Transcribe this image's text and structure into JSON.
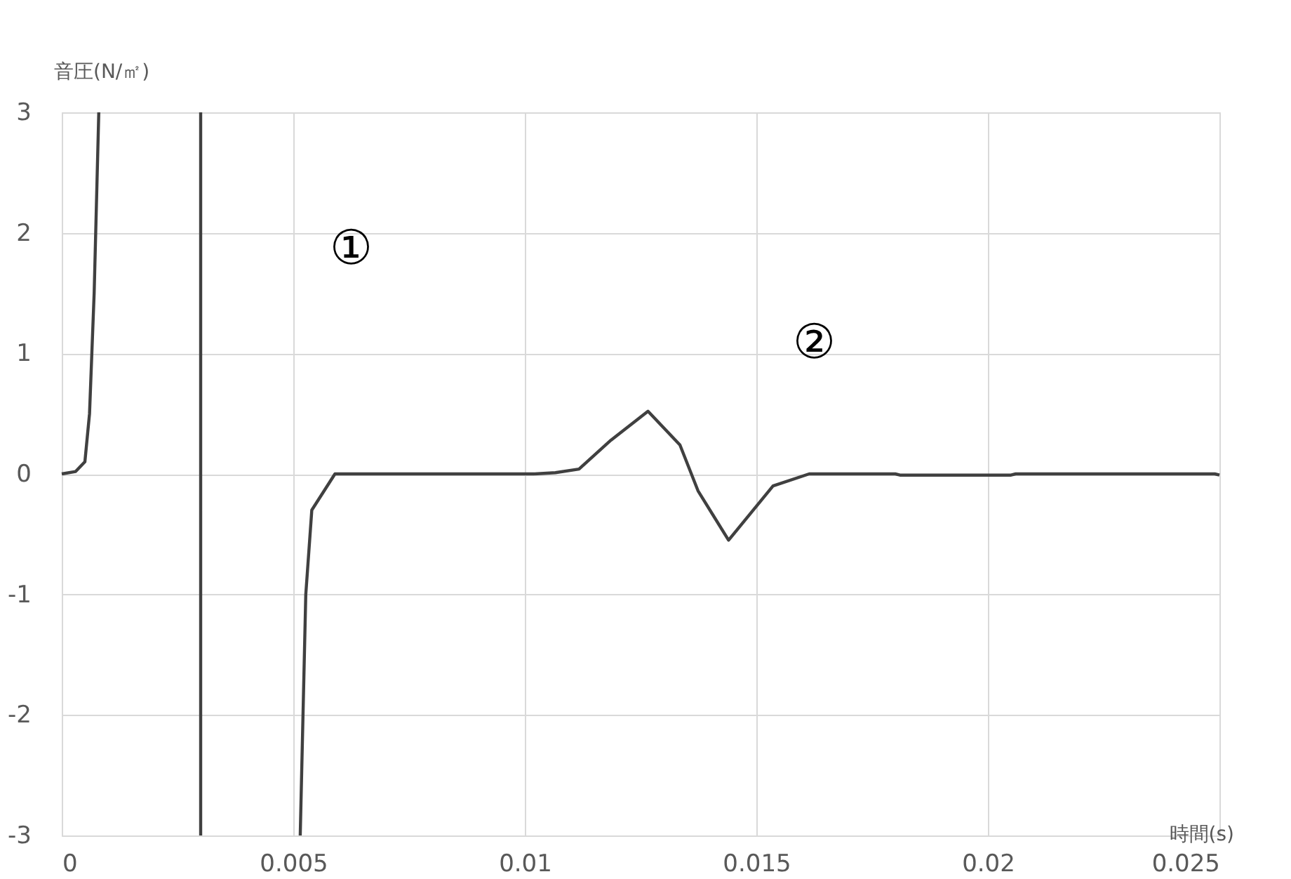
{
  "chart_data": {
    "type": "line",
    "xlabel": "時間(s)",
    "ylabel": "音圧(N/㎡)",
    "x": [
      0,
      0.0003,
      0.0005,
      0.0006,
      0.0007,
      0.0008,
      0.0018,
      0.003,
      0.003,
      0.004,
      0.00515,
      0.00527,
      0.0054,
      0.0059,
      0.0102,
      0.01066,
      0.01117,
      0.01186,
      0.01266,
      0.01335,
      0.01374,
      0.0144,
      0.01536,
      0.01614,
      0.018,
      0.0181,
      0.0205,
      0.0206,
      0.0249,
      0.025
    ],
    "series": [
      {
        "color": "#404040",
        "values": [
          0,
          0.02,
          0.1,
          0.5,
          1.5,
          3,
          null,
          3,
          -3,
          null,
          -3,
          -1,
          -0.3,
          0,
          0,
          0.01,
          0.04,
          0.28,
          0.52,
          0.24,
          -0.14,
          -0.55,
          -0.1,
          0,
          0,
          -0.01,
          -0.01,
          0,
          0,
          -0.01
        ]
      }
    ],
    "xlim": [
      0,
      0.025
    ],
    "xticks": [
      0,
      0.005,
      0.01,
      0.015,
      0.02,
      0.025
    ],
    "ylim": [
      -3,
      3
    ],
    "yticks": [
      -3,
      -2,
      -1,
      0,
      1,
      2,
      3
    ],
    "grid": true,
    "marker": "none",
    "line_style": "solid",
    "annotations": [
      "①",
      "②"
    ]
  }
}
